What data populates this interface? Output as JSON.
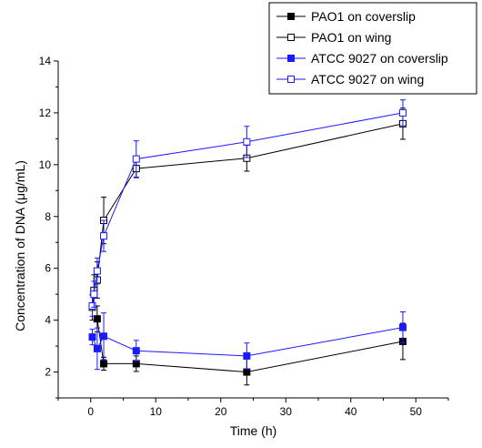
{
  "chart_data": {
    "type": "line",
    "title": "",
    "xlabel": "Time (h)",
    "ylabel": "Concentration of DNA (μg/mL)",
    "xlim": [
      -5,
      55
    ],
    "ylim": [
      1,
      14
    ],
    "xticks": [
      0,
      10,
      20,
      30,
      40,
      50
    ],
    "yticks": [
      2,
      4,
      6,
      8,
      10,
      12,
      14
    ],
    "grid": false,
    "legend_position": "top-right",
    "series": [
      {
        "name": "PAO1 on coverslip",
        "color": "#000000",
        "marker": "square-filled",
        "x": [
          1,
          2,
          7,
          24,
          48
        ],
        "y": [
          4.05,
          2.32,
          2.32,
          2.0,
          3.18
        ],
        "err": [
          0.5,
          0.25,
          0.3,
          0.5,
          0.7
        ]
      },
      {
        "name": "PAO1 on wing",
        "color": "#000000",
        "marker": "square-open",
        "x": [
          0.25,
          0.5,
          1,
          2,
          7,
          24,
          48
        ],
        "y": [
          4.5,
          5.15,
          5.55,
          7.85,
          9.85,
          10.25,
          11.58
        ],
        "err": [
          0.5,
          0.6,
          0.7,
          0.9,
          0.35,
          0.5,
          0.6
        ]
      },
      {
        "name": "ATCC 9027 on coverslip",
        "color": "#1a1aff",
        "marker": "square-filled",
        "x": [
          0.25,
          1,
          2,
          7,
          24,
          48
        ],
        "y": [
          3.35,
          2.9,
          3.38,
          2.82,
          2.62,
          3.72
        ],
        "err": [
          0.3,
          0.8,
          0.9,
          0.4,
          0.5,
          0.6
        ]
      },
      {
        "name": "ATCC 9027 on wing",
        "color": "#1a1aff",
        "marker": "square-open",
        "x": [
          0.25,
          0.5,
          1,
          2,
          7,
          24,
          48
        ],
        "y": [
          4.55,
          5.0,
          5.9,
          7.25,
          10.22,
          10.88,
          12.0
        ],
        "err": [
          0.4,
          0.5,
          0.5,
          0.6,
          0.7,
          0.6,
          0.5
        ]
      }
    ]
  }
}
